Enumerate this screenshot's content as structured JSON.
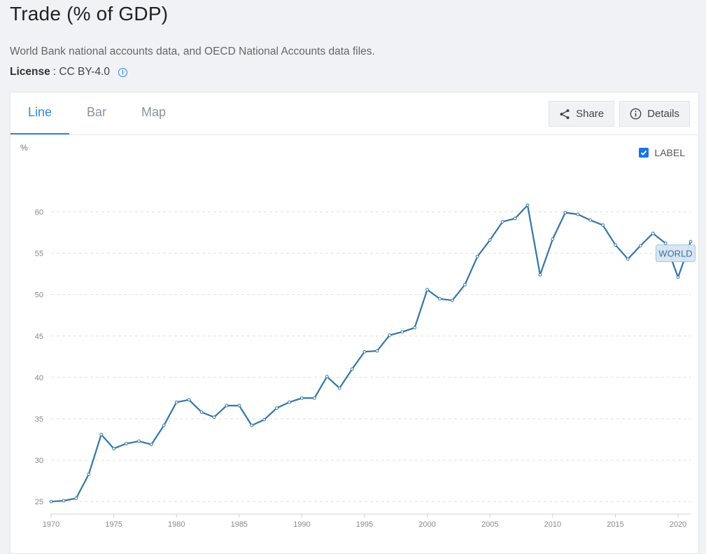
{
  "header": {
    "title": "Trade (% of GDP)",
    "source": "World Bank national accounts data, and OECD National Accounts data files.",
    "license_label": "License",
    "license_value": ": CC BY-4.0"
  },
  "tabs": [
    {
      "label": "Line",
      "active": true
    },
    {
      "label": "Bar",
      "active": false
    },
    {
      "label": "Map",
      "active": false
    }
  ],
  "actions": {
    "share_label": "Share",
    "details_label": "Details"
  },
  "legend": {
    "label": "LABEL",
    "checked": true
  },
  "colors": {
    "accent": "#2b8bd6",
    "line": "#3476a6",
    "label_bg": "#d6e6f3"
  },
  "chart_data": {
    "type": "line",
    "ylabel": "%",
    "xlim": [
      1970,
      2021
    ],
    "ylim": [
      24,
      63
    ],
    "y_ticks": [
      25,
      30,
      35,
      40,
      45,
      50,
      55,
      60
    ],
    "x_ticks": [
      1970,
      1975,
      1980,
      1985,
      1990,
      1995,
      2000,
      2005,
      2010,
      2015,
      2020
    ],
    "grid": true,
    "series": [
      {
        "name": "WORLD",
        "x": [
          1970,
          1971,
          1972,
          1973,
          1974,
          1975,
          1976,
          1977,
          1978,
          1979,
          1980,
          1981,
          1982,
          1983,
          1984,
          1985,
          1986,
          1987,
          1988,
          1989,
          1990,
          1991,
          1992,
          1993,
          1994,
          1995,
          1996,
          1997,
          1998,
          1999,
          2000,
          2001,
          2002,
          2003,
          2004,
          2005,
          2006,
          2007,
          2008,
          2009,
          2010,
          2011,
          2012,
          2013,
          2014,
          2015,
          2016,
          2017,
          2018,
          2019,
          2020,
          2021
        ],
        "values": [
          25.0,
          25.1,
          25.4,
          28.3,
          33.1,
          31.4,
          32.0,
          32.3,
          31.9,
          34.2,
          37.0,
          37.3,
          35.8,
          35.2,
          36.6,
          36.6,
          34.2,
          34.9,
          36.3,
          37.0,
          37.5,
          37.5,
          40.1,
          38.7,
          41.0,
          43.1,
          43.2,
          45.1,
          45.5,
          46.0,
          50.6,
          49.5,
          49.3,
          51.2,
          54.6,
          56.6,
          58.8,
          59.2,
          60.8,
          52.4,
          56.7,
          59.9,
          59.7,
          59.0,
          58.4,
          56.0,
          54.3,
          55.9,
          57.4,
          56.2,
          52.1,
          56.4
        ]
      }
    ]
  }
}
